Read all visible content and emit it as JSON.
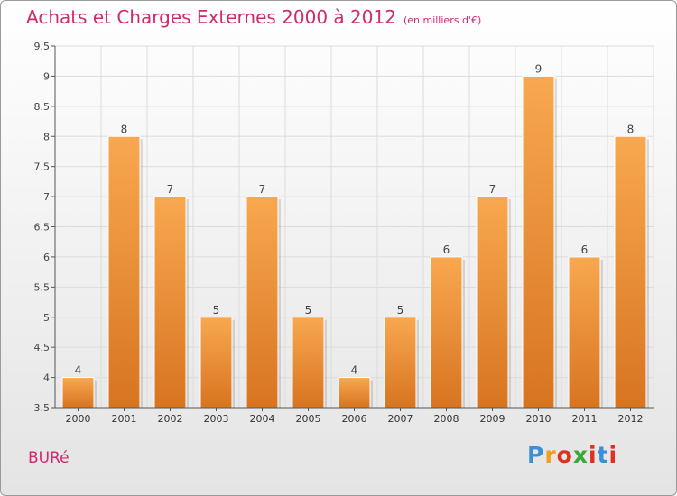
{
  "header": {
    "title": "Achats et Charges Externes 2000 à 2012",
    "unit": "(en milliers d'€)"
  },
  "footer": {
    "commune": "BURé",
    "brand": "Proxiti",
    "brand_colors": [
      "#3a8fd6",
      "#f0a020",
      "#e03020",
      "#3aa83a",
      "#e03020",
      "#3a8fd6",
      "#e03020"
    ]
  },
  "chart_data": {
    "type": "bar",
    "categories": [
      "2000",
      "2001",
      "2002",
      "2003",
      "2004",
      "2005",
      "2006",
      "2007",
      "2008",
      "2009",
      "2010",
      "2011",
      "2012"
    ],
    "values": [
      4,
      8,
      7,
      5,
      7,
      5,
      4,
      5,
      6,
      7,
      9,
      6,
      8
    ],
    "data_labels": [
      "4",
      "8",
      "7",
      "5",
      "7",
      "5",
      "4",
      "5",
      "6",
      "7",
      "9",
      "6",
      "8"
    ],
    "ylim": [
      3.5,
      9.5
    ],
    "yticks": [
      3.5,
      4,
      4.5,
      5,
      5.5,
      6,
      6.5,
      7,
      7.5,
      8,
      8.5,
      9,
      9.5
    ],
    "ytick_labels": [
      "3.5",
      "4",
      "4.5",
      "5",
      "5.5",
      "6",
      "6.5",
      "7",
      "7.5",
      "8",
      "8.5",
      "9",
      "9.5"
    ],
    "grid": true,
    "legend": "none",
    "colors": {
      "bar_light": "#f8a850",
      "bar_dark": "#d87420",
      "text_color": "#d02a6e",
      "grid_color": "#dcdcdc",
      "axis_color": "#555555"
    }
  }
}
